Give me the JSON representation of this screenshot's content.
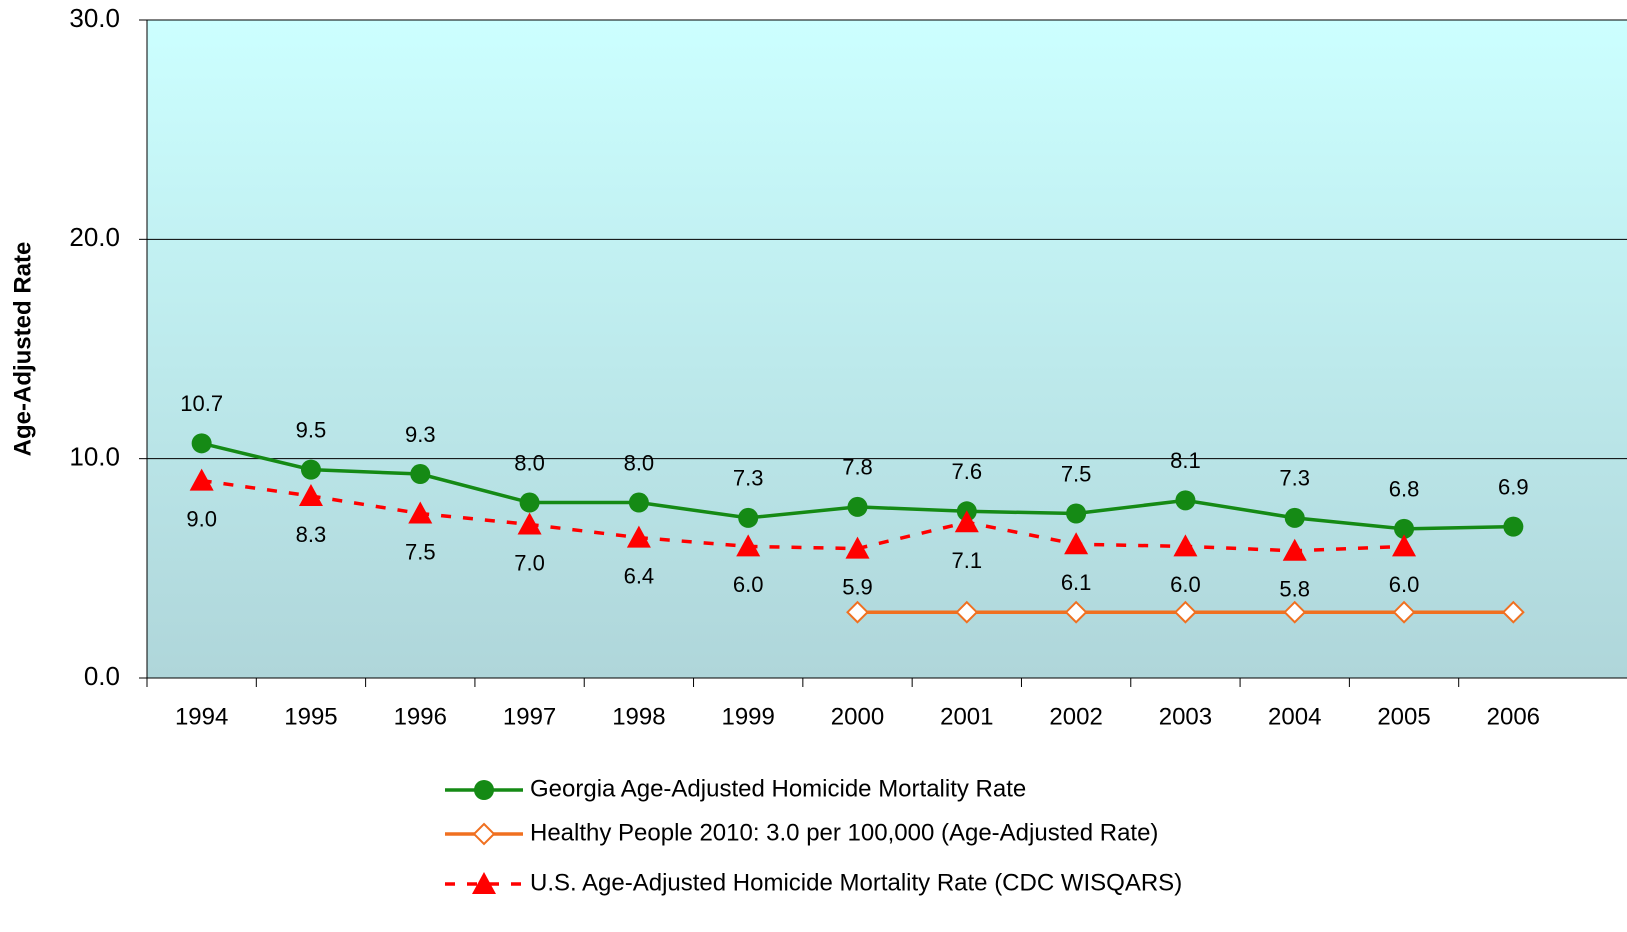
{
  "chart_data": {
    "type": "line",
    "y_label": "Age-Adjusted Rate",
    "categories": [
      "1994",
      "1995",
      "1996",
      "1997",
      "1998",
      "1999",
      "2000",
      "2001",
      "2002",
      "2003",
      "2004",
      "2005",
      "2006"
    ],
    "series": [
      {
        "name": "Georgia Age-Adjusted Homicide Mortality Rate",
        "color": "#158a15",
        "marker": "circle",
        "dash": false,
        "labels": "above",
        "values": [
          10.7,
          9.5,
          9.3,
          8.0,
          8.0,
          7.3,
          7.8,
          7.6,
          7.5,
          8.1,
          7.3,
          6.8,
          6.9
        ],
        "value_labels": [
          "10.7",
          "9.5",
          "9.3",
          "8.0",
          "8.0",
          "7.3",
          "7.8",
          "7.6",
          "7.5",
          "8.1",
          "7.3",
          "6.8",
          "6.9"
        ]
      },
      {
        "name": "Healthy People 2010: 3.0 per 100,000 (Age-Adjusted Rate)",
        "color": "#f07020",
        "marker": "diamond",
        "dash": false,
        "values": [
          null,
          null,
          null,
          null,
          null,
          null,
          3.0,
          3.0,
          3.0,
          3.0,
          3.0,
          3.0,
          3.0
        ]
      },
      {
        "name": "U.S. Age-Adjusted Homicide Mortality Rate (CDC WISQARS)",
        "color": "#ff0000",
        "marker": "triangle",
        "dash": true,
        "labels": "below",
        "values": [
          9.0,
          8.3,
          7.5,
          7.0,
          6.4,
          6.0,
          5.9,
          7.1,
          6.1,
          6.0,
          5.8,
          6.0,
          null
        ],
        "value_labels": [
          "9.0",
          "8.3",
          "7.5",
          "7.0",
          "6.4",
          "6.0",
          "5.9",
          "7.1",
          "6.1",
          "6.0",
          "5.8",
          "6.0",
          null
        ]
      }
    ],
    "ylim": [
      0,
      30
    ],
    "yticks": [
      {
        "value": 0,
        "label": "0.0"
      },
      {
        "value": 10,
        "label": "10.0"
      },
      {
        "value": 20,
        "label": "20.0"
      },
      {
        "value": 30,
        "label": "30.0"
      }
    ],
    "grid": true
  }
}
